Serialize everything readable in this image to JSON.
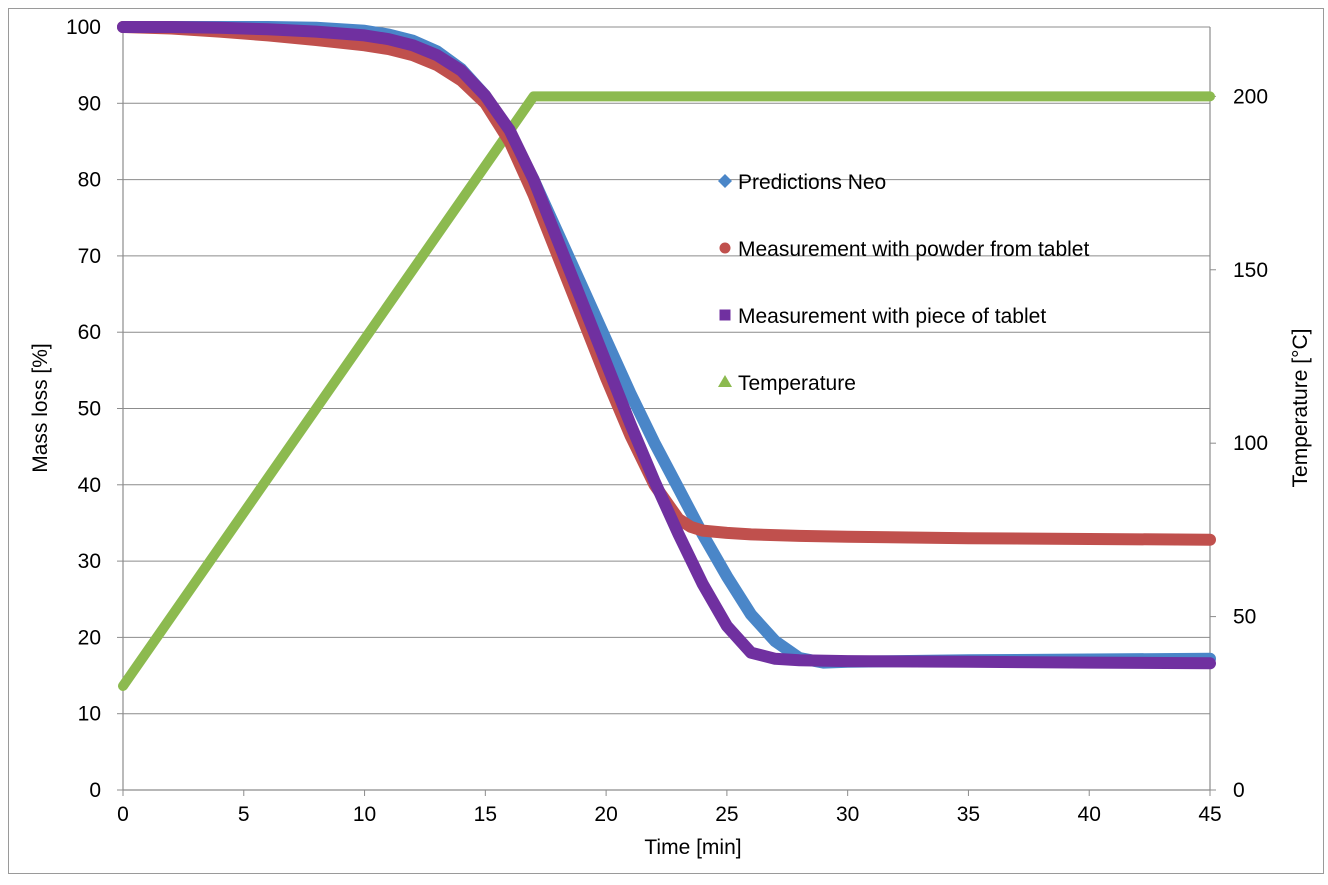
{
  "chart_data": {
    "type": "line",
    "xlabel": "Time [min]",
    "ylabel": "Mass loss [%]",
    "y2label": "Temperature [°C]",
    "xlim": [
      0,
      45
    ],
    "ylim": [
      0,
      100
    ],
    "y2lim": [
      0,
      220
    ],
    "x_ticks": [
      0,
      5,
      10,
      15,
      20,
      25,
      30,
      35,
      40,
      45
    ],
    "y_ticks": [
      0,
      10,
      20,
      30,
      40,
      50,
      60,
      70,
      80,
      90,
      100
    ],
    "y2_ticks": [
      0,
      50,
      100,
      150,
      200
    ],
    "grid": "horizontal",
    "legend_position": "center-right",
    "series": [
      {
        "name": "Predictions Neo",
        "axis": "left",
        "color": "#4a86c8",
        "marker": "diamond",
        "x": [
          0,
          2,
          4,
          6,
          8,
          10,
          11,
          12,
          13,
          14,
          15,
          16,
          17,
          18,
          19,
          20,
          21,
          22,
          23,
          24,
          25,
          26,
          27,
          28,
          29,
          30,
          35,
          40,
          45
        ],
        "y": [
          100,
          100,
          100,
          100,
          99.9,
          99.5,
          99.0,
          98.2,
          96.8,
          94.5,
          91,
          86,
          80,
          73,
          66,
          59,
          52,
          45.5,
          39.5,
          33.5,
          28,
          23,
          19.5,
          17.3,
          16.7,
          16.8,
          17,
          17.1,
          17.2
        ]
      },
      {
        "name": "Measurement with powder from tablet",
        "axis": "left",
        "color": "#c0504d",
        "marker": "circle",
        "x": [
          0,
          2,
          4,
          6,
          8,
          10,
          11,
          12,
          13,
          14,
          15,
          16,
          17,
          18,
          19,
          20,
          21,
          22,
          23,
          23.5,
          24,
          25,
          26,
          28,
          30,
          35,
          40,
          45
        ],
        "y": [
          100,
          99.8,
          99.4,
          98.9,
          98.3,
          97.6,
          97.1,
          96.3,
          95,
          93,
          90,
          85,
          78,
          70,
          62,
          54,
          46.5,
          40,
          35.5,
          34.5,
          34,
          33.7,
          33.5,
          33.3,
          33.2,
          33,
          32.9,
          32.8
        ]
      },
      {
        "name": "Measurement with piece of tablet",
        "axis": "left",
        "color": "#7030a0",
        "marker": "square",
        "x": [
          0,
          2,
          4,
          6,
          8,
          10,
          11,
          12,
          13,
          14,
          15,
          16,
          17,
          18,
          19,
          20,
          21,
          22,
          23,
          24,
          25,
          26,
          27,
          28,
          30,
          35,
          40,
          45
        ],
        "y": [
          100,
          100,
          99.9,
          99.7,
          99.4,
          98.9,
          98.4,
          97.6,
          96.3,
          94.3,
          91,
          86.5,
          80,
          72,
          64,
          56,
          48,
          40.5,
          33.5,
          27,
          21.5,
          18,
          17.2,
          17,
          16.9,
          16.8,
          16.7,
          16.6
        ]
      },
      {
        "name": "Temperature",
        "axis": "right",
        "color": "#8cba4f",
        "marker": "triangle",
        "x": [
          0,
          17,
          45
        ],
        "y": [
          30,
          200,
          200
        ]
      }
    ]
  }
}
